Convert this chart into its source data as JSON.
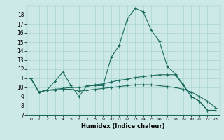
{
  "xlabel": "Humidex (Indice chaleur)",
  "background_color": "#cce9e7",
  "grid_color": "#aad4d0",
  "line_color": "#1a6b5e",
  "xlim": [
    -0.5,
    23.5
  ],
  "ylim": [
    7,
    19
  ],
  "yticks": [
    7,
    8,
    9,
    10,
    11,
    12,
    13,
    14,
    15,
    16,
    17,
    18
  ],
  "xticks": [
    0,
    1,
    2,
    3,
    4,
    5,
    6,
    7,
    8,
    9,
    10,
    11,
    12,
    13,
    14,
    15,
    16,
    17,
    18,
    19,
    20,
    21,
    22,
    23
  ],
  "line1_x": [
    0,
    1,
    2,
    3,
    4,
    5,
    6,
    7,
    8,
    9,
    10,
    11,
    12,
    13,
    14,
    15,
    16,
    17,
    18,
    19,
    20,
    21,
    22,
    23
  ],
  "line1_y": [
    11,
    9.5,
    9.7,
    10.7,
    11.7,
    10.2,
    9.0,
    10.2,
    10.2,
    10.2,
    13.3,
    14.6,
    17.5,
    18.7,
    18.3,
    16.3,
    15.1,
    12.3,
    11.5,
    10.3,
    9.0,
    8.5,
    7.5,
    7.5
  ],
  "line2_x": [
    0,
    1,
    2,
    3,
    4,
    5,
    6,
    7,
    8,
    9,
    10,
    11,
    12,
    13,
    14,
    15,
    16,
    17,
    18,
    19,
    20,
    21,
    22,
    23
  ],
  "line2_y": [
    11,
    9.5,
    9.7,
    9.8,
    9.9,
    10.0,
    10.0,
    10.1,
    10.3,
    10.4,
    10.6,
    10.8,
    10.9,
    11.1,
    11.2,
    11.3,
    11.4,
    11.4,
    11.4,
    10.2,
    9.0,
    8.5,
    7.5,
    7.5
  ],
  "line3_x": [
    0,
    1,
    2,
    3,
    4,
    5,
    6,
    7,
    8,
    9,
    10,
    11,
    12,
    13,
    14,
    15,
    16,
    17,
    18,
    19,
    20,
    21,
    22,
    23
  ],
  "line3_y": [
    11,
    9.5,
    9.7,
    9.7,
    9.8,
    9.8,
    9.6,
    9.7,
    9.8,
    9.9,
    10.0,
    10.1,
    10.2,
    10.3,
    10.3,
    10.3,
    10.2,
    10.1,
    10.0,
    9.8,
    9.5,
    9.0,
    8.5,
    7.8
  ]
}
